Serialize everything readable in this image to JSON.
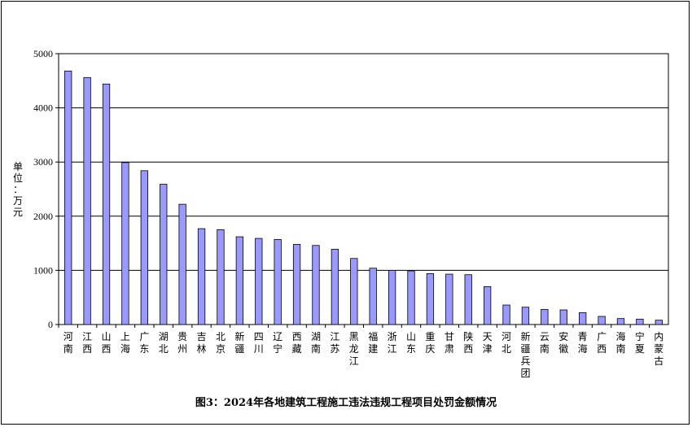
{
  "chart_data": {
    "type": "bar",
    "title": "图3：2024年各地建筑工程施工违法违规工程项目处罚金额情况",
    "xlabel": "",
    "ylabel": "单位：万元",
    "ylim": [
      0,
      5000
    ],
    "yticks": [
      0,
      1000,
      2000,
      3000,
      4000,
      5000
    ],
    "grid": true,
    "legend": "none",
    "bar_color": "#9999ff",
    "categories": [
      "河南",
      "江西",
      "山西",
      "上海",
      "广东",
      "湖北",
      "贵州",
      "吉林",
      "北京",
      "新疆",
      "四川",
      "辽宁",
      "西藏",
      "湖南",
      "江苏",
      "黑龙江",
      "福建",
      "浙江",
      "山东",
      "重庆",
      "甘肃",
      "陕西",
      "天津",
      "河北",
      "新疆兵团",
      "云南",
      "安徽",
      "青海",
      "广西",
      "海南",
      "宁夏",
      "内蒙古"
    ],
    "values": [
      4680,
      4560,
      4440,
      2990,
      2840,
      2590,
      2220,
      1770,
      1750,
      1620,
      1590,
      1570,
      1480,
      1460,
      1390,
      1220,
      1040,
      1000,
      990,
      940,
      930,
      920,
      700,
      360,
      320,
      280,
      270,
      220,
      150,
      110,
      100,
      80
    ]
  }
}
